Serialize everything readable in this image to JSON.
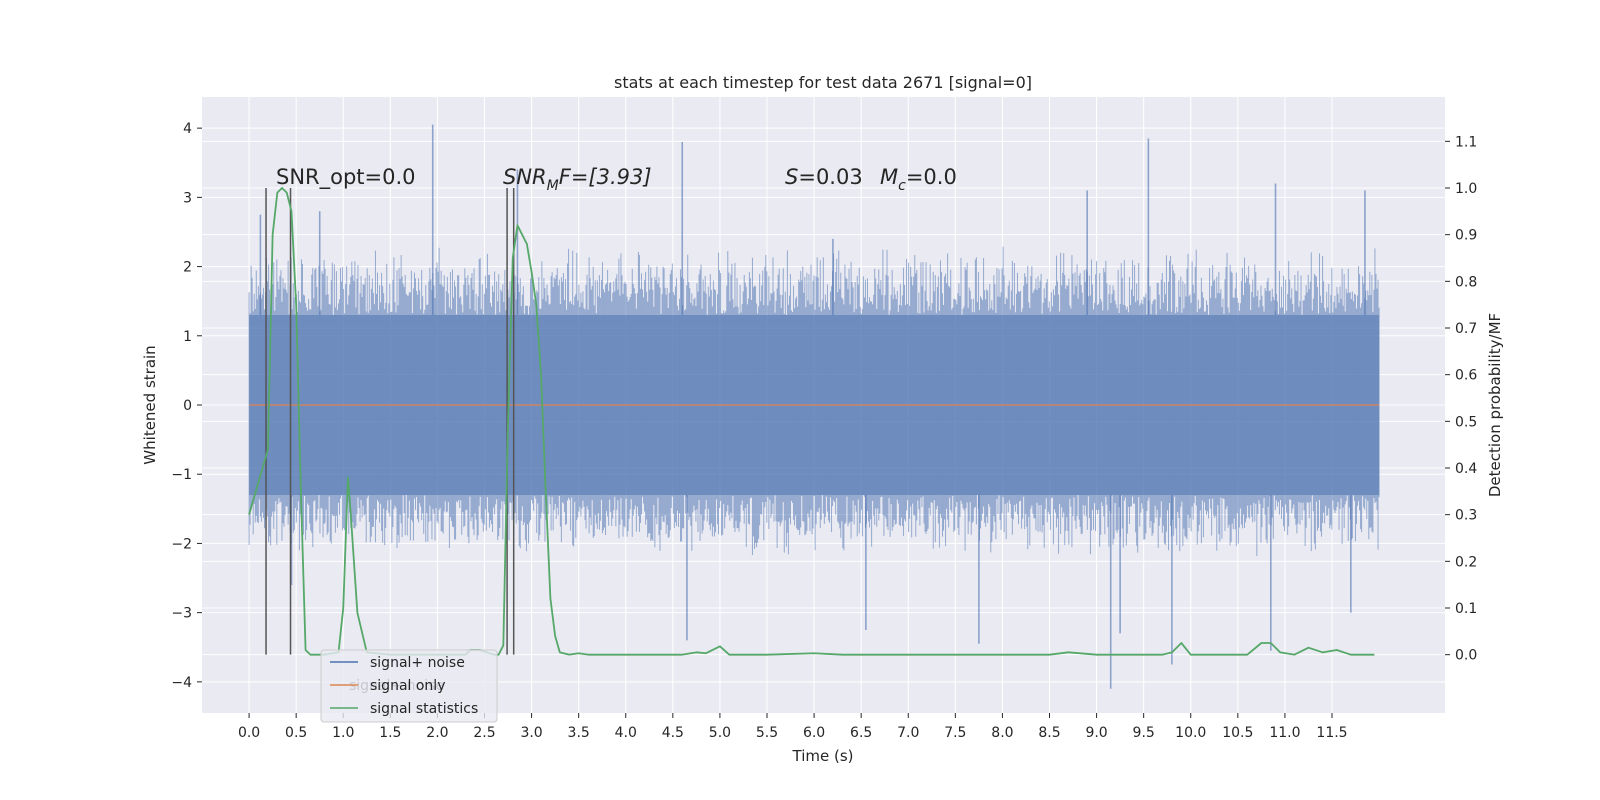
{
  "chart_data": {
    "type": "line",
    "title": "stats at each timestep for test data 2671 [signal=0]",
    "xlabel": "Time (s)",
    "ylabel": "Whitened strain",
    "ylabel_right": "Detection probability/MF",
    "xlim": [
      -0.5,
      12.7
    ],
    "ylim": [
      -4.45,
      4.45
    ],
    "ylim_right": [
      -0.125,
      1.195
    ],
    "x_ticks": [
      "0.0",
      "0.5",
      "1.0",
      "1.5",
      "2.0",
      "2.5",
      "3.0",
      "3.5",
      "4.0",
      "4.5",
      "5.0",
      "5.5",
      "6.0",
      "6.5",
      "7.0",
      "7.5",
      "8.0",
      "8.5",
      "9.0",
      "9.5",
      "10.0",
      "10.5",
      "11.0",
      "11.5"
    ],
    "y_ticks": [
      "−4",
      "−3",
      "−2",
      "−1",
      "0",
      "1",
      "2",
      "3",
      "4"
    ],
    "y_ticks_right": [
      "0.0",
      "0.1",
      "0.2",
      "0.3",
      "0.4",
      "0.5",
      "0.6",
      "0.7",
      "0.8",
      "0.9",
      "1.0",
      "1.1"
    ],
    "grid": true,
    "legend_placement": "lower-left",
    "series": [
      {
        "name": "signal+ noise",
        "color": "#4c72b0",
        "axis": "left",
        "x_range": [
          0.0,
          12.0
        ],
        "dense_band": [
          -1.3,
          1.3
        ],
        "typical_envelope": [
          -2.2,
          2.3
        ],
        "peaks": [
          [
            0.12,
            2.75
          ],
          [
            0.75,
            2.8
          ],
          [
            1.95,
            4.05
          ],
          [
            2.85,
            3.4
          ],
          [
            4.6,
            3.8
          ],
          [
            6.2,
            2.4
          ],
          [
            8.9,
            3.1
          ],
          [
            9.55,
            3.85
          ],
          [
            10.9,
            3.2
          ],
          [
            11.85,
            3.1
          ]
        ],
        "troughs": [
          [
            0.45,
            -2.6
          ],
          [
            4.65,
            -3.4
          ],
          [
            6.55,
            -3.25
          ],
          [
            7.75,
            -3.45
          ],
          [
            9.15,
            -4.1
          ],
          [
            9.25,
            -3.3
          ],
          [
            9.8,
            -3.75
          ],
          [
            10.85,
            -3.55
          ],
          [
            11.7,
            -3.0
          ]
        ]
      },
      {
        "name": "signal only",
        "color": "#dd8452",
        "axis": "left",
        "x": [
          0.0,
          12.0
        ],
        "y": [
          0.0,
          0.0
        ]
      },
      {
        "name": "signal statistics",
        "color": "#55a868",
        "axis": "right",
        "x": [
          0.0,
          0.1,
          0.2,
          0.25,
          0.3,
          0.35,
          0.4,
          0.45,
          0.5,
          0.55,
          0.6,
          0.65,
          0.8,
          0.95,
          1.0,
          1.05,
          1.08,
          1.15,
          1.25,
          1.5,
          2.0,
          2.3,
          2.35,
          2.45,
          2.6,
          2.65,
          2.7,
          2.75,
          2.8,
          2.85,
          2.9,
          2.95,
          3.0,
          3.05,
          3.1,
          3.15,
          3.2,
          3.25,
          3.3,
          3.4,
          3.5,
          3.6,
          4.0,
          4.4,
          4.6,
          4.75,
          4.85,
          5.0,
          5.1,
          5.25,
          5.5,
          6.0,
          6.3,
          6.5,
          7.0,
          8.0,
          8.5,
          8.7,
          9.0,
          9.5,
          9.7,
          9.8,
          9.9,
          10.0,
          10.1,
          10.3,
          10.6,
          10.75,
          10.85,
          10.95,
          11.1,
          11.25,
          11.4,
          11.55,
          11.7,
          11.95
        ],
        "y": [
          0.3,
          0.37,
          0.44,
          0.9,
          0.99,
          1.0,
          0.99,
          0.95,
          0.75,
          0.35,
          0.01,
          0.0,
          0.0,
          0.005,
          0.1,
          0.38,
          0.3,
          0.09,
          0.005,
          0.0,
          0.0,
          0.0,
          0.01,
          0.01,
          0.0,
          0.0,
          0.02,
          0.5,
          0.85,
          0.92,
          0.9,
          0.88,
          0.82,
          0.75,
          0.6,
          0.35,
          0.12,
          0.04,
          0.005,
          0.0,
          0.003,
          0.0,
          0.0,
          0.0,
          0.0,
          0.005,
          0.003,
          0.018,
          0.0,
          0.0,
          0.0,
          0.003,
          0.0,
          0.0,
          0.0,
          0.0,
          0.0,
          0.005,
          0.0,
          0.0,
          0.0,
          0.005,
          0.025,
          0.0,
          0.0,
          0.0,
          0.0,
          0.025,
          0.025,
          0.005,
          0.0,
          0.015,
          0.005,
          0.01,
          0.0,
          0.0
        ]
      }
    ],
    "vlines": {
      "color": "#555555",
      "x": [
        0.18,
        0.44,
        2.74,
        2.81
      ],
      "y_bottom_right": 0.0,
      "y_top_right": 1.0
    },
    "annotations": {
      "snr_opt": "SNR_opt=0.0",
      "snr_mf_base": "SNR",
      "snr_mf_sub": "M",
      "snr_mf_rest": "F=[3.93]",
      "s_label": "S",
      "s_value": "=0.03",
      "mc_label": "M",
      "mc_sub": "c",
      "mc_value": "=0.0"
    },
    "legend_residual_text": "signal+ noise"
  }
}
